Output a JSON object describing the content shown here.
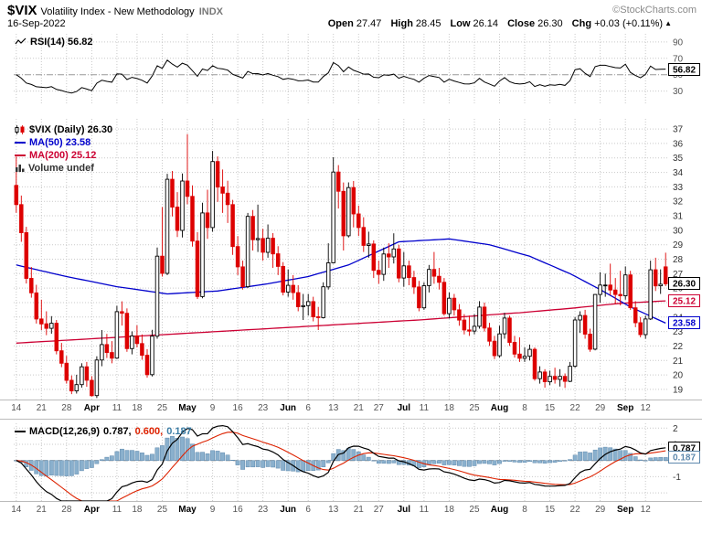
{
  "header": {
    "symbol": "$VIX",
    "name": "Volatility Index - New Methodology",
    "exchange": "INDX",
    "copyright": "©StockCharts.com",
    "date": "16-Sep-2022",
    "quote": {
      "open_label": "Open",
      "open": "27.47",
      "high_label": "High",
      "high": "28.45",
      "low_label": "Low",
      "low": "26.14",
      "close_label": "Close",
      "close": "26.30",
      "chg_label": "Chg",
      "chg": "+0.03 (+0.11%)",
      "arrow": "▲"
    }
  },
  "legends": {
    "rsi": "RSI(14) 56.82",
    "price": "$VIX (Daily) 26.30",
    "ma50": "MA(50) 23.58",
    "ma200": "MA(200) 25.12",
    "volume": "Volume undef",
    "macd": "MACD(12,26,9)",
    "macd_v1": "0.787,",
    "macd_v2": "0.600,",
    "macd_v3": "0.187"
  },
  "chart_data": {
    "type": "candlestick",
    "title": "$VIX Volatility Index - New Methodology INDX",
    "date_range": "14-Mar-2022 to 16-Sep-2022",
    "frequency": "daily",
    "ticks": [
      {
        "i": 0,
        "label": "14"
      },
      {
        "i": 5,
        "label": "21"
      },
      {
        "i": 10,
        "label": "28"
      },
      {
        "i": 15,
        "label": "Apr",
        "m": true
      },
      {
        "i": 20,
        "label": "11"
      },
      {
        "i": 24,
        "label": "18"
      },
      {
        "i": 29,
        "label": "25"
      },
      {
        "i": 34,
        "label": "May",
        "m": true
      },
      {
        "i": 39,
        "label": "9"
      },
      {
        "i": 44,
        "label": "16"
      },
      {
        "i": 49,
        "label": "23"
      },
      {
        "i": 54,
        "label": "Jun",
        "m": true
      },
      {
        "i": 58,
        "label": "6"
      },
      {
        "i": 63,
        "label": "13"
      },
      {
        "i": 68,
        "label": "21"
      },
      {
        "i": 72,
        "label": "27"
      },
      {
        "i": 77,
        "label": "Jul",
        "m": true
      },
      {
        "i": 81,
        "label": "11"
      },
      {
        "i": 86,
        "label": "18"
      },
      {
        "i": 91,
        "label": "25"
      },
      {
        "i": 96,
        "label": "Aug",
        "m": true
      },
      {
        "i": 101,
        "label": "8"
      },
      {
        "i": 106,
        "label": "15"
      },
      {
        "i": 111,
        "label": "22"
      },
      {
        "i": 116,
        "label": "29"
      },
      {
        "i": 121,
        "label": "Sep",
        "m": true
      },
      {
        "i": 125,
        "label": "12"
      }
    ],
    "main": {
      "ylim": [
        18.3,
        37.7
      ],
      "yticks": [
        19,
        20,
        21,
        22,
        23,
        24,
        25,
        26,
        27,
        28,
        29,
        30,
        31,
        32,
        33,
        34,
        35,
        36,
        37
      ],
      "last": 26.3,
      "last_label": "26.30",
      "up_color": "#000000",
      "down_color": "#dd0000",
      "ma50": {
        "value": 23.58,
        "value_label": "23.58",
        "color": "#0000cc",
        "points": [
          [
            0,
            27.6
          ],
          [
            10,
            26.8
          ],
          [
            20,
            26.1
          ],
          [
            30,
            25.6
          ],
          [
            40,
            25.8
          ],
          [
            50,
            26.3
          ],
          [
            58,
            26.8
          ],
          [
            66,
            27.6
          ],
          [
            76,
            29.2
          ],
          [
            86,
            29.4
          ],
          [
            94,
            29.0
          ],
          [
            102,
            28.2
          ],
          [
            110,
            27.0
          ],
          [
            116,
            25.9
          ],
          [
            122,
            24.7
          ],
          [
            129,
            23.58
          ]
        ]
      },
      "ma200": {
        "value": 25.12,
        "value_label": "25.12",
        "color": "#cc0033",
        "points": [
          [
            0,
            22.2
          ],
          [
            20,
            22.6
          ],
          [
            40,
            23.0
          ],
          [
            60,
            23.4
          ],
          [
            80,
            23.8
          ],
          [
            100,
            24.3
          ],
          [
            110,
            24.6
          ],
          [
            120,
            24.95
          ],
          [
            129,
            25.12
          ]
        ]
      },
      "ohlc": [
        [
          33.1,
          35.09,
          31.21,
          31.77
        ],
        [
          31.77,
          32.4,
          29.2,
          29.83
        ],
        [
          29.83,
          30.24,
          26.32,
          26.67
        ],
        [
          26.67,
          27.46,
          25.34,
          25.67
        ],
        [
          25.67,
          26.23,
          23.55,
          23.87
        ],
        [
          23.87,
          25.2,
          23.1,
          23.53
        ],
        [
          23.53,
          24.4,
          22.75,
          23.22
        ],
        [
          23.22,
          24.06,
          22.85,
          23.57
        ],
        [
          23.57,
          23.8,
          21.42,
          21.67
        ],
        [
          21.67,
          22.21,
          20.54,
          20.81
        ],
        [
          20.81,
          21.32,
          19.4,
          19.63
        ],
        [
          19.63,
          19.96,
          18.67,
          18.9
        ],
        [
          18.9,
          20.01,
          18.71,
          19.33
        ],
        [
          19.33,
          20.81,
          19.12,
          20.56
        ],
        [
          20.56,
          20.9,
          19.18,
          19.63
        ],
        [
          19.63,
          19.92,
          18.51,
          18.57
        ],
        [
          18.57,
          21.29,
          18.4,
          21.03
        ],
        [
          21.03,
          23.1,
          20.6,
          22.1
        ],
        [
          22.1,
          22.84,
          21.17,
          21.55
        ],
        [
          21.55,
          22.34,
          20.8,
          21.16
        ],
        [
          21.16,
          24.78,
          21.1,
          24.37
        ],
        [
          24.37,
          25.09,
          23.41,
          24.26
        ],
        [
          24.26,
          24.6,
          21.6,
          21.82
        ],
        [
          21.82,
          23.01,
          21.42,
          22.7
        ],
        [
          22.7,
          23.43,
          21.9,
          22.17
        ],
        [
          22.17,
          22.8,
          21.05,
          21.36
        ],
        [
          21.36,
          21.78,
          19.81,
          20.02
        ],
        [
          20.02,
          23.12,
          19.9,
          22.68
        ],
        [
          22.68,
          28.8,
          22.5,
          28.21
        ],
        [
          28.21,
          31.6,
          26.8,
          27.02
        ],
        [
          27.02,
          33.9,
          26.9,
          33.52
        ],
        [
          33.52,
          34.1,
          30.95,
          31.6
        ],
        [
          31.6,
          32.64,
          29.53,
          29.99
        ],
        [
          29.99,
          33.93,
          29.5,
          33.4
        ],
        [
          33.4,
          36.64,
          31.8,
          32.34
        ],
        [
          32.34,
          33.1,
          28.87,
          29.25
        ],
        [
          29.25,
          29.87,
          25.25,
          25.42
        ],
        [
          25.42,
          31.9,
          25.3,
          31.2
        ],
        [
          31.2,
          32.8,
          29.4,
          30.19
        ],
        [
          30.19,
          35.48,
          29.9,
          34.75
        ],
        [
          34.75,
          35.1,
          31.96,
          32.99
        ],
        [
          32.99,
          34.2,
          31.2,
          32.56
        ],
        [
          32.56,
          33.42,
          30.5,
          31.77
        ],
        [
          31.77,
          32.1,
          28.3,
          28.87
        ],
        [
          28.87,
          29.6,
          26.9,
          27.47
        ],
        [
          27.47,
          27.9,
          25.9,
          26.1
        ],
        [
          26.1,
          31.2,
          26.0,
          30.96
        ],
        [
          30.96,
          31.4,
          28.6,
          29.35
        ],
        [
          29.35,
          31.77,
          28.5,
          29.43
        ],
        [
          29.43,
          30.1,
          27.9,
          28.48
        ],
        [
          28.48,
          30.4,
          28.1,
          29.45
        ],
        [
          29.45,
          29.8,
          27.4,
          28.37
        ],
        [
          28.37,
          28.9,
          26.9,
          27.5
        ],
        [
          27.5,
          27.8,
          25.5,
          25.72
        ],
        [
          25.72,
          27.3,
          25.4,
          26.19
        ],
        [
          26.19,
          26.9,
          25.2,
          25.69
        ],
        [
          25.69,
          26.2,
          24.4,
          24.72
        ],
        [
          24.72,
          25.6,
          23.8,
          24.79
        ],
        [
          24.79,
          25.6,
          24.1,
          25.07
        ],
        [
          25.07,
          25.4,
          23.7,
          24.02
        ],
        [
          24.02,
          24.7,
          23.1,
          23.96
        ],
        [
          23.96,
          26.4,
          23.9,
          26.09
        ],
        [
          26.09,
          29.1,
          25.9,
          27.75
        ],
        [
          27.75,
          35.05,
          27.7,
          34.02
        ],
        [
          34.02,
          34.5,
          31.5,
          32.69
        ],
        [
          32.69,
          33.3,
          28.6,
          29.62
        ],
        [
          29.62,
          33.31,
          29.5,
          32.95
        ],
        [
          32.95,
          33.4,
          30.2,
          31.13
        ],
        [
          31.13,
          31.7,
          29.6,
          30.19
        ],
        [
          30.19,
          30.9,
          28.5,
          28.95
        ],
        [
          28.95,
          29.9,
          28.1,
          29.05
        ],
        [
          29.05,
          29.3,
          26.7,
          27.23
        ],
        [
          27.23,
          27.9,
          26.3,
          26.95
        ],
        [
          26.95,
          28.8,
          26.5,
          28.36
        ],
        [
          28.36,
          29.1,
          27.4,
          28.16
        ],
        [
          28.16,
          29.79,
          27.7,
          28.71
        ],
        [
          28.71,
          29.0,
          26.4,
          26.7
        ],
        [
          26.7,
          28.5,
          26.1,
          27.54
        ],
        [
          27.54,
          27.9,
          26.2,
          26.73
        ],
        [
          26.73,
          27.2,
          25.6,
          26.08
        ],
        [
          26.08,
          26.5,
          24.4,
          24.64
        ],
        [
          24.64,
          26.4,
          24.5,
          26.17
        ],
        [
          26.17,
          27.6,
          25.7,
          27.29
        ],
        [
          27.29,
          28.5,
          26.3,
          26.82
        ],
        [
          26.82,
          27.4,
          25.9,
          26.4
        ],
        [
          26.4,
          26.7,
          24.1,
          24.23
        ],
        [
          24.23,
          25.7,
          23.9,
          25.3
        ],
        [
          25.3,
          25.6,
          24.1,
          24.5
        ],
        [
          24.5,
          24.9,
          23.4,
          23.79
        ],
        [
          23.79,
          24.2,
          22.8,
          23.11
        ],
        [
          23.11,
          24.1,
          22.7,
          23.03
        ],
        [
          23.03,
          24.2,
          22.8,
          23.36
        ],
        [
          23.36,
          25.1,
          23.2,
          24.69
        ],
        [
          24.69,
          25.0,
          23.0,
          23.24
        ],
        [
          23.24,
          23.6,
          22.0,
          22.33
        ],
        [
          22.33,
          22.7,
          21.1,
          21.33
        ],
        [
          21.33,
          23.4,
          21.2,
          22.84
        ],
        [
          22.84,
          24.3,
          22.5,
          23.93
        ],
        [
          23.93,
          24.1,
          22.0,
          22.25
        ],
        [
          22.25,
          22.7,
          21.2,
          21.44
        ],
        [
          21.44,
          22.6,
          20.9,
          21.15
        ],
        [
          21.15,
          21.9,
          20.9,
          21.29
        ],
        [
          21.29,
          22.1,
          21.0,
          21.77
        ],
        [
          21.77,
          21.9,
          19.6,
          19.74
        ],
        [
          19.74,
          20.6,
          19.4,
          20.2
        ],
        [
          20.2,
          20.4,
          19.12,
          19.53
        ],
        [
          19.53,
          20.3,
          19.3,
          19.9
        ],
        [
          19.9,
          20.5,
          19.4,
          19.69
        ],
        [
          19.69,
          20.4,
          19.2,
          19.9
        ],
        [
          19.9,
          20.1,
          19.1,
          19.56
        ],
        [
          19.56,
          20.9,
          19.5,
          20.6
        ],
        [
          20.6,
          24.0,
          20.5,
          23.8
        ],
        [
          23.8,
          24.4,
          22.9,
          24.11
        ],
        [
          24.11,
          24.5,
          22.5,
          22.82
        ],
        [
          22.82,
          23.2,
          21.6,
          21.78
        ],
        [
          21.78,
          25.6,
          21.7,
          25.56
        ],
        [
          25.56,
          27.1,
          25.0,
          26.21
        ],
        [
          26.21,
          27.0,
          25.4,
          26.21
        ],
        [
          26.21,
          27.69,
          25.5,
          25.87
        ],
        [
          25.87,
          26.7,
          24.9,
          25.56
        ],
        [
          25.56,
          27.2,
          24.8,
          25.47
        ],
        [
          25.47,
          27.5,
          25.2,
          26.91
        ],
        [
          26.91,
          27.2,
          24.5,
          24.64
        ],
        [
          24.64,
          25.1,
          23.3,
          23.61
        ],
        [
          23.61,
          24.0,
          22.6,
          22.79
        ],
        [
          22.79,
          24.1,
          22.5,
          23.87
        ],
        [
          23.87,
          27.9,
          23.8,
          27.27
        ],
        [
          27.27,
          28.1,
          25.8,
          26.16
        ],
        [
          26.16,
          27.3,
          25.6,
          26.27
        ],
        [
          27.47,
          28.45,
          26.14,
          26.3
        ]
      ]
    },
    "rsi": {
      "period": 14,
      "value": 56.82,
      "value_label": "56.82",
      "range": [
        15,
        100
      ],
      "gridlines": [
        30,
        50,
        70,
        90
      ]
    },
    "macd": {
      "params": [
        12,
        26,
        9
      ],
      "values": [
        0.787,
        0.6,
        0.187
      ],
      "box_labels": [
        "0.787",
        "0.187"
      ],
      "ylim": [
        -2.5,
        2.3
      ],
      "yticks": [
        2,
        1,
        -1
      ],
      "gridlines": [
        2,
        1,
        -1,
        -2
      ],
      "hist_fill": "#8ab0cd",
      "hist_stroke": "#5e89ad",
      "line_color": "#000000",
      "signal_color": "#dd2200"
    }
  }
}
